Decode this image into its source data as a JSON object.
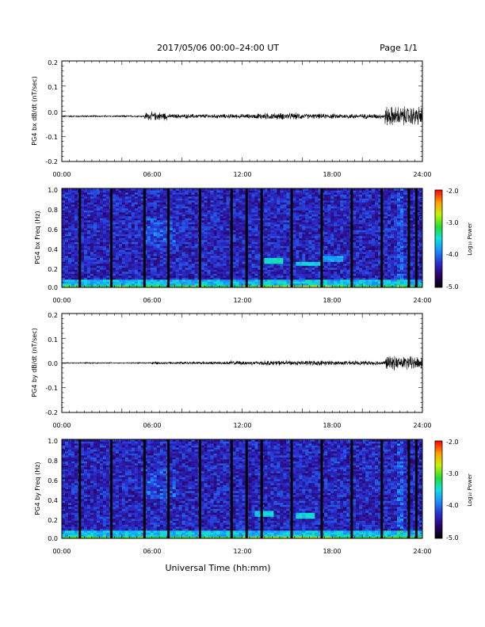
{
  "header": {
    "title": "2017/05/06  00:00–24:00 UT",
    "page": "Page 1/1"
  },
  "x_axis": {
    "ticks": [
      "00:00",
      "06:00",
      "12:00",
      "18:00",
      "24:00"
    ],
    "label": "Universal Time (hh:mm)"
  },
  "colorbar": {
    "label": "Log₁₀ Power",
    "ticks": [
      "-2.0",
      "-3.0",
      "-4.0",
      "-5.0"
    ]
  },
  "chart_data": [
    {
      "type": "line",
      "ylabel": "PG4 bx dB/dt (nT/sec)",
      "xlim": [
        0,
        24
      ],
      "ylim": [
        -0.2,
        0.2
      ],
      "yticks": [
        "0.2",
        "0.1",
        "0.0",
        "-0.1",
        "-0.2"
      ],
      "baseline": -0.02,
      "envelope": [
        {
          "t0": 0,
          "t1": 5.5,
          "amp": 0.003
        },
        {
          "t0": 5.5,
          "t1": 7.0,
          "amp": 0.015
        },
        {
          "t0": 7.0,
          "t1": 13.0,
          "amp": 0.008
        },
        {
          "t0": 13.0,
          "t1": 16.0,
          "amp": 0.012
        },
        {
          "t0": 16.0,
          "t1": 21.5,
          "amp": 0.009
        },
        {
          "t0": 21.5,
          "t1": 24.0,
          "amp": 0.035
        }
      ]
    },
    {
      "type": "heatmap",
      "ylabel": "PG4 bx Freq (Hz)",
      "xlim": [
        0,
        24
      ],
      "ylim": [
        0,
        1.0
      ],
      "yticks": [
        "1.0",
        "0.8",
        "0.6",
        "0.4",
        "0.2",
        "0.0"
      ],
      "zlim": [
        -5.0,
        -2.0
      ],
      "gaps_hours": [
        1.2,
        3.3,
        5.5,
        7.1,
        9.2,
        11.3,
        12.3,
        13.3,
        15.3,
        17.3,
        19.3,
        21.3,
        23.1,
        23.6
      ],
      "bands": [
        {
          "t0": 13.5,
          "t1": 14.8,
          "f": 0.26,
          "level": -3.6
        },
        {
          "t0": 15.6,
          "t1": 17.2,
          "f": 0.24,
          "level": -3.7
        },
        {
          "t0": 17.2,
          "t1": 18.8,
          "f": 0.28,
          "level": -3.9
        }
      ]
    },
    {
      "type": "line",
      "ylabel": "PG4 by dB/dt (nT/sec)",
      "xlim": [
        0,
        24
      ],
      "ylim": [
        -0.2,
        0.2
      ],
      "yticks": [
        "0.2",
        "0.1",
        "0.0",
        "-0.1",
        "-0.2"
      ],
      "baseline": 0.0,
      "envelope": [
        {
          "t0": 0,
          "t1": 6.0,
          "amp": 0.002
        },
        {
          "t0": 6.0,
          "t1": 11.0,
          "amp": 0.005
        },
        {
          "t0": 11.0,
          "t1": 13.0,
          "amp": 0.008
        },
        {
          "t0": 13.0,
          "t1": 18.0,
          "amp": 0.009
        },
        {
          "t0": 18.0,
          "t1": 21.5,
          "amp": 0.008
        },
        {
          "t0": 21.5,
          "t1": 24.0,
          "amp": 0.025
        }
      ]
    },
    {
      "type": "heatmap",
      "ylabel": "PG4 by Freq (Hz)",
      "xlim": [
        0,
        24
      ],
      "ylim": [
        0,
        1.0
      ],
      "yticks": [
        "1.0",
        "0.8",
        "0.6",
        "0.4",
        "0.2",
        "0.0"
      ],
      "zlim": [
        -5.0,
        -2.0
      ],
      "gaps_hours": [
        1.2,
        3.3,
        5.5,
        7.1,
        9.2,
        11.3,
        12.3,
        13.3,
        15.3,
        17.3,
        19.3,
        21.3,
        23.1,
        23.6
      ],
      "bands": [
        {
          "t0": 12.9,
          "t1": 14.0,
          "f": 0.25,
          "level": -3.7
        },
        {
          "t0": 15.6,
          "t1": 16.9,
          "f": 0.23,
          "level": -3.7
        }
      ]
    }
  ]
}
